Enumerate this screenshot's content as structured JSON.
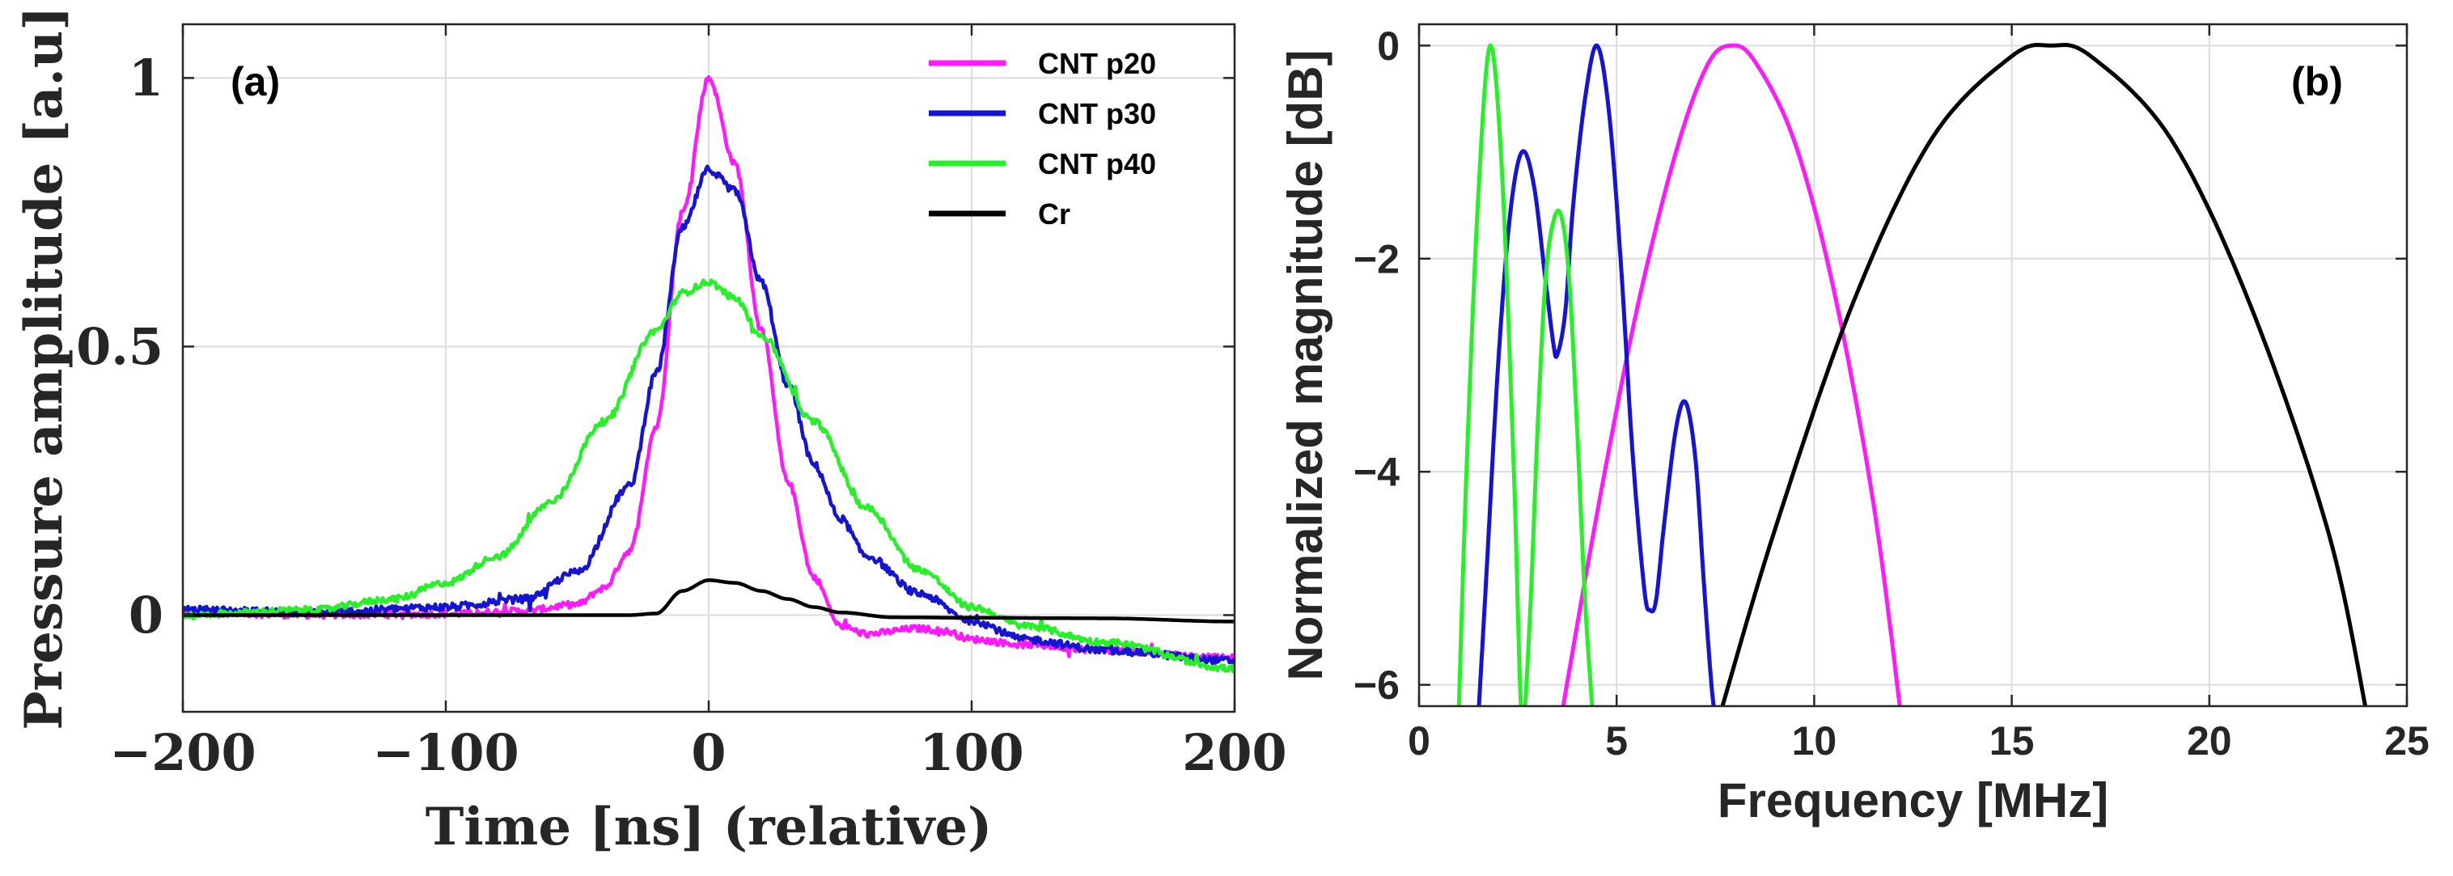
{
  "chart_data": [
    {
      "type": "line",
      "panel_label": "(a)",
      "xlabel": "Time [ns] (relative)",
      "ylabel": "Pressure amplitude [a.u]",
      "xlim": [
        -200,
        200
      ],
      "ylim": [
        -0.18,
        1.1
      ],
      "xticks": [
        -200,
        -100,
        0,
        100,
        200
      ],
      "xtick_labels": [
        "−200",
        "−100",
        "0",
        "100",
        "200"
      ],
      "yticks": [
        0,
        0.5,
        1
      ],
      "ytick_labels": [
        "0",
        "0.5",
        "1"
      ],
      "grid": true,
      "legend_position": "top-right",
      "series": [
        {
          "name": "CNT  p20",
          "color": "#ff19ff",
          "noise": 0.006,
          "x": [
            -200,
            -150,
            -100,
            -70,
            -50,
            -40,
            -30,
            -20,
            -10,
            0,
            10,
            20,
            30,
            40,
            50,
            60,
            80,
            90,
            100,
            120,
            150,
            200
          ],
          "y": [
            0.005,
            0.0,
            0.002,
            0.008,
            0.02,
            0.05,
            0.12,
            0.35,
            0.75,
            1.0,
            0.84,
            0.53,
            0.25,
            0.07,
            -0.02,
            -0.035,
            -0.025,
            -0.03,
            -0.045,
            -0.055,
            -0.065,
            -0.08
          ]
        },
        {
          "name": "CNT  p30",
          "color": "#1414d2",
          "noise": 0.007,
          "x": [
            -200,
            -150,
            -100,
            -70,
            -50,
            -30,
            -20,
            -10,
            0,
            10,
            20,
            30,
            40,
            50,
            60,
            80,
            100,
            120,
            150,
            200
          ],
          "y": [
            0.01,
            0.005,
            0.015,
            0.03,
            0.08,
            0.24,
            0.45,
            0.72,
            0.83,
            0.79,
            0.62,
            0.43,
            0.28,
            0.18,
            0.11,
            0.04,
            -0.01,
            -0.045,
            -0.065,
            -0.085
          ]
        },
        {
          "name": "CNT  p40",
          "color": "#28f028",
          "noise": 0.006,
          "x": [
            -200,
            -150,
            -120,
            -100,
            -80,
            -60,
            -40,
            -20,
            -10,
            0,
            10,
            20,
            40,
            60,
            80,
            100,
            120,
            150,
            200
          ],
          "y": [
            0.0,
            0.01,
            0.03,
            0.06,
            0.11,
            0.21,
            0.36,
            0.53,
            0.6,
            0.62,
            0.59,
            0.52,
            0.36,
            0.2,
            0.085,
            0.015,
            -0.02,
            -0.05,
            -0.1
          ]
        },
        {
          "name": "Cr",
          "color": "#000000",
          "noise": 0,
          "x": [
            -200,
            -100,
            -30,
            -20,
            -10,
            0,
            10,
            20,
            30,
            40,
            50,
            70,
            100,
            150,
            200
          ],
          "y": [
            0.0,
            0.0,
            0.0,
            0.003,
            0.045,
            0.065,
            0.06,
            0.045,
            0.03,
            0.015,
            0.005,
            -0.004,
            -0.005,
            -0.006,
            -0.012
          ]
        }
      ]
    },
    {
      "type": "line",
      "panel_label": "(b)",
      "xlabel": "Frequency [MHz]",
      "ylabel": "Normalized magnitude [dB]",
      "xlim": [
        0,
        25
      ],
      "ylim": [
        -6.2,
        0.2
      ],
      "xticks": [
        0,
        5,
        10,
        15,
        20,
        25
      ],
      "xtick_labels": [
        "0",
        "5",
        "10",
        "15",
        "20",
        "25"
      ],
      "yticks": [
        0,
        -2,
        -4,
        -6
      ],
      "ytick_labels": [
        "0",
        "−2",
        "−4",
        "−6"
      ],
      "grid": true,
      "series": [
        {
          "name": "CNT  p20",
          "color": "#ff19ff",
          "x": [
            3.6,
            4.5,
            5.5,
            6.5,
            7.3,
            7.9,
            8.5,
            9.5,
            10.5,
            11.5,
            12.2
          ],
          "y": [
            -6.3,
            -4.4,
            -2.5,
            -1.0,
            -0.18,
            0.0,
            -0.15,
            -0.9,
            -2.3,
            -4.3,
            -6.3
          ]
        },
        {
          "name": "CNT  p30",
          "color": "#1414d2",
          "x": [
            1.5,
            1.7,
            2.0,
            2.3,
            2.6,
            2.9,
            3.2,
            3.4,
            3.5,
            3.7,
            3.9,
            4.2,
            4.5,
            4.8,
            5.1,
            5.4,
            5.7,
            5.85,
            6.0,
            6.2,
            6.5,
            6.75,
            7.0,
            7.2,
            7.4,
            7.5
          ],
          "y": [
            -6.3,
            -5.0,
            -3.0,
            -1.6,
            -1.0,
            -1.3,
            -2.2,
            -2.8,
            -2.9,
            -2.5,
            -1.5,
            -0.5,
            0.0,
            -0.6,
            -2.0,
            -3.8,
            -5.1,
            -5.3,
            -5.2,
            -4.5,
            -3.6,
            -3.35,
            -3.9,
            -5.0,
            -6.0,
            -6.3
          ]
        },
        {
          "name": "CNT  p40",
          "color": "#28f028",
          "x": [
            1.0,
            1.2,
            1.5,
            1.8,
            2.1,
            2.4,
            2.6,
            2.8,
            3.0,
            3.2,
            3.4,
            3.6,
            3.8,
            4.0,
            4.2,
            4.4
          ],
          "y": [
            -6.3,
            -4.0,
            -1.4,
            0.0,
            -1.2,
            -4.0,
            -6.3,
            -5.4,
            -3.6,
            -2.2,
            -1.65,
            -1.6,
            -2.2,
            -3.6,
            -5.2,
            -6.3
          ]
        },
        {
          "name": "Cr",
          "color": "#000000",
          "x": [
            7.6,
            9.0,
            11.0,
            13.0,
            15.0,
            16.0,
            17.0,
            19.0,
            21.0,
            23.0,
            24.0
          ],
          "y": [
            -6.3,
            -4.55,
            -2.4,
            -0.86,
            -0.1,
            0.0,
            -0.1,
            -0.86,
            -2.4,
            -4.55,
            -6.3
          ]
        }
      ]
    }
  ]
}
